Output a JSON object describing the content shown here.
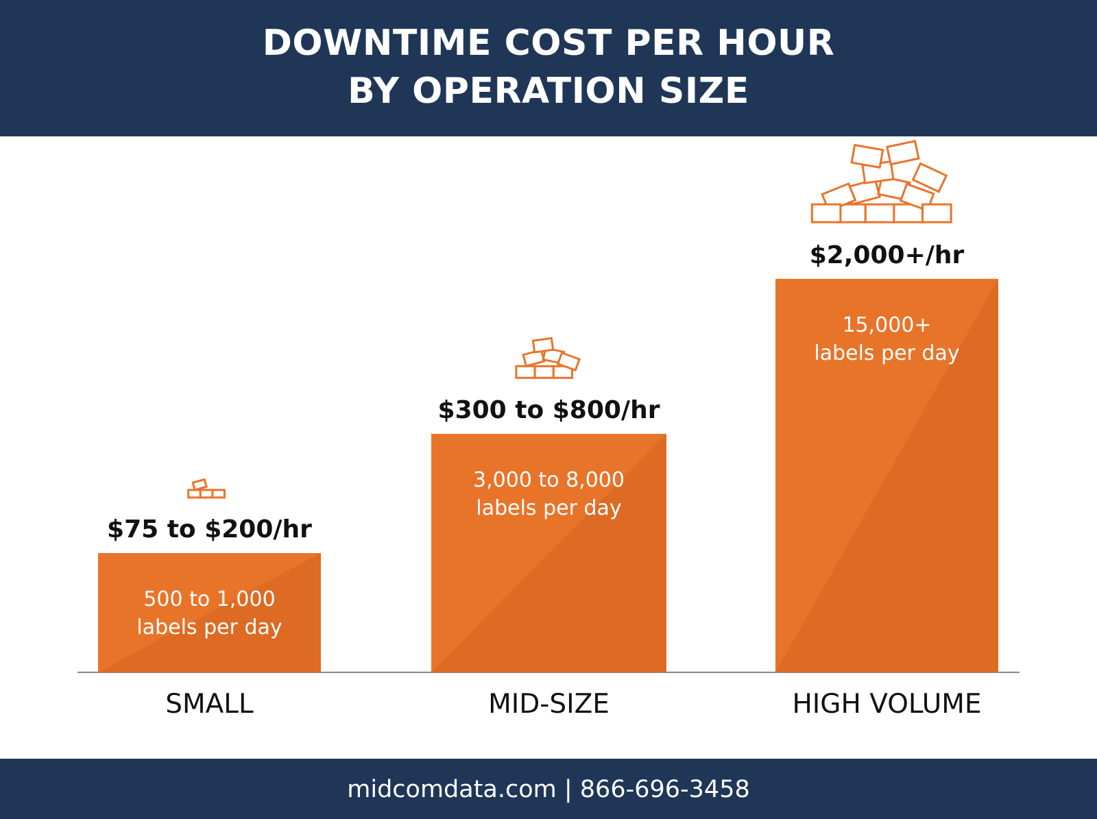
{
  "header": {
    "title_line1": "DOWNTIME COST PER HOUR",
    "title_line2": "BY OPERATION SIZE"
  },
  "footer": {
    "text": "midcomdata.com | 866-696-3458"
  },
  "colors": {
    "header_bg": "#1f3657",
    "bar": "#e8742a",
    "bar_shade": "#d4641f",
    "icon": "#e8742a"
  },
  "icons": [
    "label-stack-small-icon",
    "label-stack-medium-icon",
    "label-stack-large-icon"
  ],
  "chart_data": {
    "type": "bar",
    "title": "DOWNTIME COST PER HOUR BY OPERATION SIZE",
    "categories": [
      "SMALL",
      "MID-SIZE",
      "HIGH VOLUME"
    ],
    "values": [
      1,
      2,
      3.3
    ],
    "cost_labels": [
      "$75 to $200/hr",
      "$300 to $800/hr",
      "$2,000+/hr"
    ],
    "volume_labels": [
      [
        "500 to 1,000",
        "labels per day"
      ],
      [
        "3,000 to 8,000",
        "labels per day"
      ],
      [
        "15,000+",
        "labels per day"
      ]
    ],
    "grid": false,
    "legend": "none"
  }
}
